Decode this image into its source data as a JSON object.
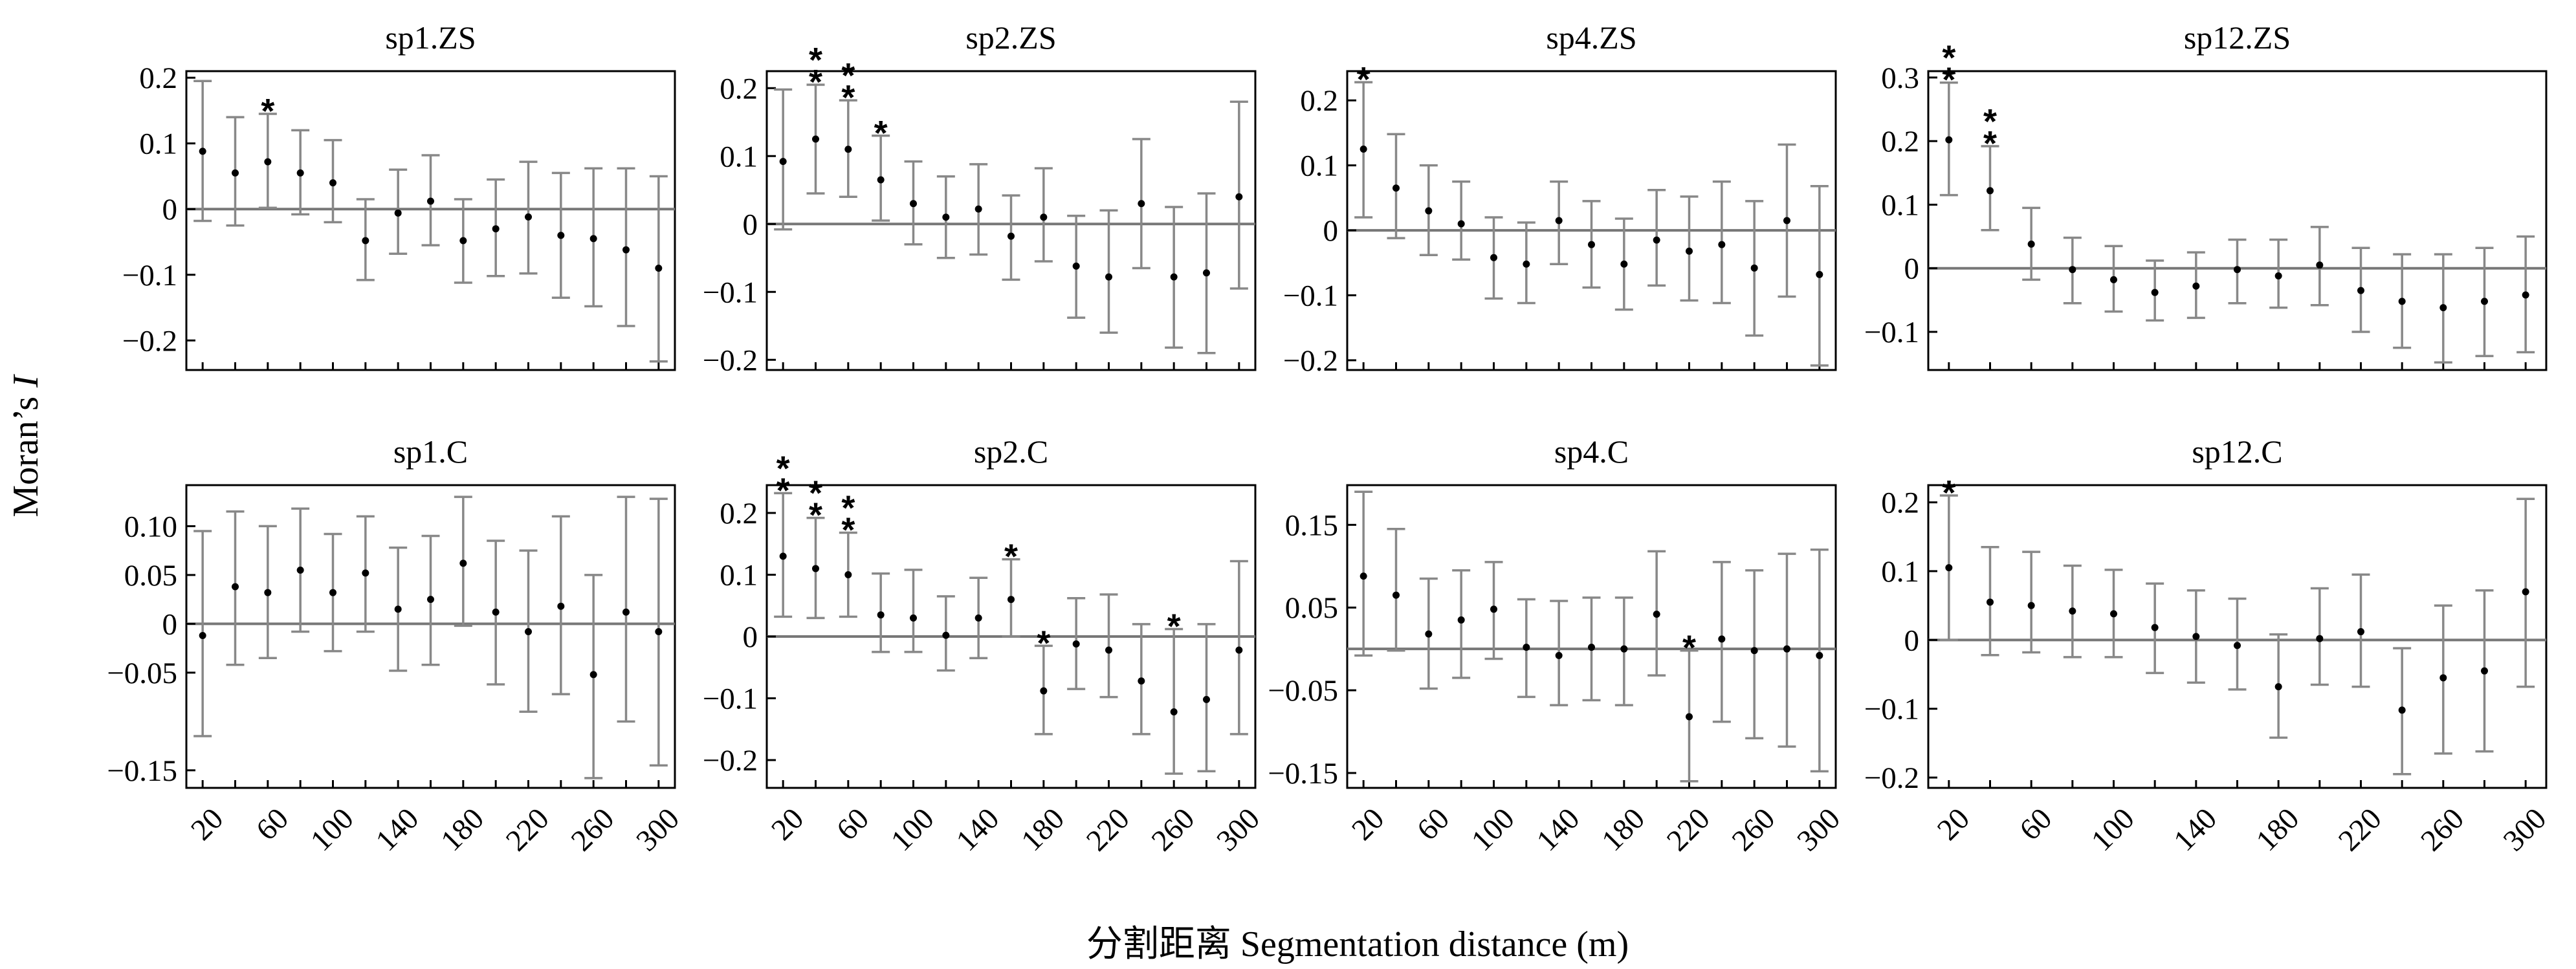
{
  "figure": {
    "ylabel_prefix": "Moran’s ",
    "ylabel_italic": "I",
    "xlabel": "分割距离 Segmentation distance (m)"
  },
  "chart_data": [
    {
      "type": "scatter",
      "title": "sp1.ZS",
      "yticks": [
        0.2,
        0.1,
        0,
        -0.1,
        -0.2
      ],
      "ytick_labels": [
        "0.2",
        "0.1",
        "0",
        "−0.1",
        "−0.2"
      ],
      "ylim": [
        -0.245,
        0.21
      ],
      "x": [
        20,
        40,
        60,
        80,
        100,
        120,
        140,
        160,
        180,
        200,
        220,
        240,
        260,
        280,
        300
      ],
      "mean": [
        0.088,
        0.055,
        0.072,
        0.055,
        0.04,
        -0.048,
        -0.006,
        0.012,
        -0.048,
        -0.03,
        -0.012,
        -0.04,
        -0.045,
        -0.062,
        -0.09
      ],
      "upper": [
        0.195,
        0.14,
        0.145,
        0.12,
        0.105,
        0.015,
        0.06,
        0.082,
        0.015,
        0.045,
        0.072,
        0.055,
        0.062,
        0.062,
        0.05
      ],
      "lower": [
        -0.018,
        -0.025,
        0.002,
        -0.008,
        -0.02,
        -0.108,
        -0.068,
        -0.055,
        -0.112,
        -0.102,
        -0.098,
        -0.135,
        -0.148,
        -0.178,
        -0.232
      ],
      "stars": [
        0,
        0,
        1,
        0,
        0,
        0,
        0,
        0,
        0,
        0,
        0,
        0,
        0,
        0,
        0
      ]
    },
    {
      "type": "scatter",
      "title": "sp2.ZS",
      "yticks": [
        0.2,
        0.1,
        0,
        -0.1,
        -0.2
      ],
      "ytick_labels": [
        "0.2",
        "0.1",
        "0",
        "−0.1",
        "−0.2"
      ],
      "ylim": [
        -0.215,
        0.225
      ],
      "x": [
        20,
        40,
        60,
        80,
        100,
        120,
        140,
        160,
        180,
        200,
        220,
        240,
        260,
        280,
        300
      ],
      "mean": [
        0.092,
        0.125,
        0.11,
        0.065,
        0.03,
        0.01,
        0.022,
        -0.018,
        0.01,
        -0.062,
        -0.078,
        0.03,
        -0.078,
        -0.072,
        0.04
      ],
      "upper": [
        0.198,
        0.205,
        0.182,
        0.13,
        0.092,
        0.07,
        0.088,
        0.042,
        0.082,
        0.012,
        0.02,
        0.125,
        0.025,
        0.045,
        0.18
      ],
      "lower": [
        -0.008,
        0.045,
        0.04,
        0.005,
        -0.03,
        -0.05,
        -0.045,
        -0.082,
        -0.055,
        -0.138,
        -0.16,
        -0.065,
        -0.182,
        -0.19,
        -0.095
      ],
      "stars": [
        0,
        2,
        2,
        1,
        0,
        0,
        0,
        0,
        0,
        0,
        0,
        0,
        0,
        0,
        0
      ]
    },
    {
      "type": "scatter",
      "title": "sp4.ZS",
      "yticks": [
        0.2,
        0.1,
        0,
        -0.1,
        -0.2
      ],
      "ytick_labels": [
        "0.2",
        "0.1",
        "0",
        "−0.1",
        "−0.2"
      ],
      "ylim": [
        -0.215,
        0.245
      ],
      "x": [
        20,
        40,
        60,
        80,
        100,
        120,
        140,
        160,
        180,
        200,
        220,
        240,
        260,
        280,
        300
      ],
      "mean": [
        0.125,
        0.065,
        0.03,
        0.01,
        -0.042,
        -0.052,
        0.015,
        -0.022,
        -0.052,
        -0.015,
        -0.032,
        -0.022,
        -0.058,
        0.015,
        -0.068
      ],
      "upper": [
        0.228,
        0.148,
        0.1,
        0.075,
        0.02,
        0.012,
        0.075,
        0.045,
        0.018,
        0.062,
        0.052,
        0.075,
        0.045,
        0.132,
        0.068
      ],
      "lower": [
        0.02,
        -0.012,
        -0.038,
        -0.045,
        -0.105,
        -0.112,
        -0.052,
        -0.088,
        -0.122,
        -0.085,
        -0.108,
        -0.112,
        -0.162,
        -0.102,
        -0.208
      ],
      "stars": [
        1,
        0,
        0,
        0,
        0,
        0,
        0,
        0,
        0,
        0,
        0,
        0,
        0,
        0,
        0
      ]
    },
    {
      "type": "scatter",
      "title": "sp12.ZS",
      "yticks": [
        0.3,
        0.2,
        0.1,
        0,
        -0.1
      ],
      "ytick_labels": [
        "0.3",
        "0.2",
        "0.1",
        "0",
        "−0.1"
      ],
      "ylim": [
        -0.16,
        0.31
      ],
      "x": [
        20,
        40,
        60,
        80,
        100,
        120,
        140,
        160,
        180,
        200,
        220,
        240,
        260,
        280,
        300
      ],
      "mean": [
        0.202,
        0.122,
        0.038,
        -0.002,
        -0.018,
        -0.038,
        -0.028,
        -0.002,
        -0.012,
        0.005,
        -0.035,
        -0.052,
        -0.062,
        -0.052,
        -0.042
      ],
      "upper": [
        0.292,
        0.192,
        0.095,
        0.048,
        0.035,
        0.012,
        0.025,
        0.045,
        0.045,
        0.065,
        0.032,
        0.022,
        0.022,
        0.032,
        0.05
      ],
      "lower": [
        0.115,
        0.06,
        -0.018,
        -0.055,
        -0.068,
        -0.082,
        -0.078,
        -0.055,
        -0.062,
        -0.058,
        -0.1,
        -0.125,
        -0.148,
        -0.138,
        -0.132
      ],
      "stars": [
        2,
        2,
        0,
        0,
        0,
        0,
        0,
        0,
        0,
        0,
        0,
        0,
        0,
        0,
        0
      ]
    },
    {
      "type": "scatter",
      "title": "sp1.C",
      "yticks": [
        0.1,
        0.05,
        0,
        -0.05,
        -0.15
      ],
      "ytick_labels": [
        "0.10",
        "0.05",
        "0",
        "−0.05",
        "−0.15"
      ],
      "ylim": [
        -0.168,
        0.142
      ],
      "x": [
        20,
        40,
        60,
        80,
        100,
        120,
        140,
        160,
        180,
        200,
        220,
        240,
        260,
        280,
        300
      ],
      "mean": [
        -0.012,
        0.038,
        0.032,
        0.055,
        0.032,
        0.052,
        0.015,
        0.025,
        0.062,
        0.012,
        -0.008,
        0.018,
        -0.052,
        0.012,
        -0.008
      ],
      "upper": [
        0.095,
        0.115,
        0.1,
        0.118,
        0.092,
        0.11,
        0.078,
        0.09,
        0.13,
        0.085,
        0.075,
        0.11,
        0.05,
        0.13,
        0.128
      ],
      "lower": [
        -0.115,
        -0.042,
        -0.035,
        -0.008,
        -0.028,
        -0.008,
        -0.048,
        -0.042,
        -0.002,
        -0.062,
        -0.09,
        -0.072,
        -0.158,
        -0.1,
        -0.145
      ],
      "stars": [
        0,
        0,
        0,
        0,
        0,
        0,
        0,
        0,
        0,
        0,
        0,
        0,
        0,
        0,
        0
      ]
    },
    {
      "type": "scatter",
      "title": "sp2.C",
      "yticks": [
        0.2,
        0.1,
        0,
        -0.1,
        -0.2
      ],
      "ytick_labels": [
        "0.2",
        "0.1",
        "0",
        "−0.1",
        "−0.2"
      ],
      "ylim": [
        -0.245,
        0.245
      ],
      "x": [
        20,
        40,
        60,
        80,
        100,
        120,
        140,
        160,
        180,
        200,
        220,
        240,
        260,
        280,
        300
      ],
      "mean": [
        0.13,
        0.11,
        0.1,
        0.035,
        0.03,
        0.002,
        0.03,
        0.06,
        -0.088,
        -0.012,
        -0.022,
        -0.072,
        -0.122,
        -0.102,
        -0.022
      ],
      "upper": [
        0.232,
        0.192,
        0.168,
        0.102,
        0.108,
        0.065,
        0.095,
        0.125,
        -0.015,
        0.062,
        0.068,
        0.02,
        0.012,
        0.02,
        0.122
      ],
      "lower": [
        0.032,
        0.03,
        0.032,
        -0.025,
        -0.025,
        -0.055,
        -0.035,
        0.0,
        -0.158,
        -0.085,
        -0.098,
        -0.158,
        -0.222,
        -0.218,
        -0.158
      ],
      "stars": [
        2,
        2,
        2,
        0,
        0,
        0,
        0,
        1,
        1,
        0,
        0,
        0,
        1,
        0,
        0
      ]
    },
    {
      "type": "scatter",
      "title": "sp4.C",
      "yticks": [
        0.15,
        0.05,
        -0.05,
        -0.15
      ],
      "ytick_labels": [
        "0.15",
        "0.05",
        "−0.05",
        "−0.15"
      ],
      "ylim": [
        -0.168,
        0.198
      ],
      "x": [
        20,
        40,
        60,
        80,
        100,
        120,
        140,
        160,
        180,
        200,
        220,
        240,
        260,
        280,
        300
      ],
      "mean": [
        0.088,
        0.065,
        0.018,
        0.035,
        0.048,
        0.002,
        -0.008,
        0.002,
        0.0,
        0.042,
        -0.082,
        0.012,
        -0.002,
        0.0,
        -0.008
      ],
      "upper": [
        0.19,
        0.145,
        0.085,
        0.095,
        0.105,
        0.06,
        0.058,
        0.062,
        0.062,
        0.118,
        -0.002,
        0.105,
        0.095,
        0.115,
        0.12
      ],
      "lower": [
        -0.008,
        -0.002,
        -0.048,
        -0.035,
        -0.012,
        -0.058,
        -0.068,
        -0.062,
        -0.068,
        -0.032,
        -0.16,
        -0.088,
        -0.108,
        -0.118,
        -0.148
      ],
      "stars": [
        0,
        0,
        0,
        0,
        0,
        0,
        0,
        0,
        0,
        0,
        1,
        0,
        0,
        0,
        0
      ]
    },
    {
      "type": "scatter",
      "title": "sp12.C",
      "yticks": [
        0.2,
        0.1,
        0,
        -0.1,
        -0.2
      ],
      "ytick_labels": [
        "0.2",
        "0.1",
        "0",
        "−0.1",
        "−0.2"
      ],
      "ylim": [
        -0.215,
        0.225
      ],
      "x": [
        20,
        40,
        60,
        80,
        100,
        120,
        140,
        160,
        180,
        200,
        220,
        240,
        260,
        280,
        300
      ],
      "mean": [
        0.105,
        0.055,
        0.05,
        0.042,
        0.038,
        0.018,
        0.005,
        -0.008,
        -0.068,
        0.002,
        0.012,
        -0.102,
        -0.055,
        -0.045,
        0.07
      ],
      "upper": [
        0.21,
        0.135,
        0.128,
        0.108,
        0.102,
        0.082,
        0.072,
        0.06,
        0.008,
        0.075,
        0.095,
        -0.012,
        0.05,
        0.072,
        0.205
      ],
      "lower": [
        0.0,
        -0.022,
        -0.018,
        -0.025,
        -0.025,
        -0.048,
        -0.062,
        -0.072,
        -0.142,
        -0.065,
        -0.068,
        -0.195,
        -0.165,
        -0.162,
        -0.068
      ],
      "stars": [
        1,
        0,
        0,
        0,
        0,
        0,
        0,
        0,
        0,
        0,
        0,
        0,
        0,
        0,
        0
      ]
    }
  ],
  "xtick_labels": [
    "20",
    "60",
    "100",
    "140",
    "180",
    "220",
    "260",
    "300"
  ],
  "xtick_values": [
    20,
    60,
    100,
    140,
    180,
    220,
    260,
    300
  ]
}
